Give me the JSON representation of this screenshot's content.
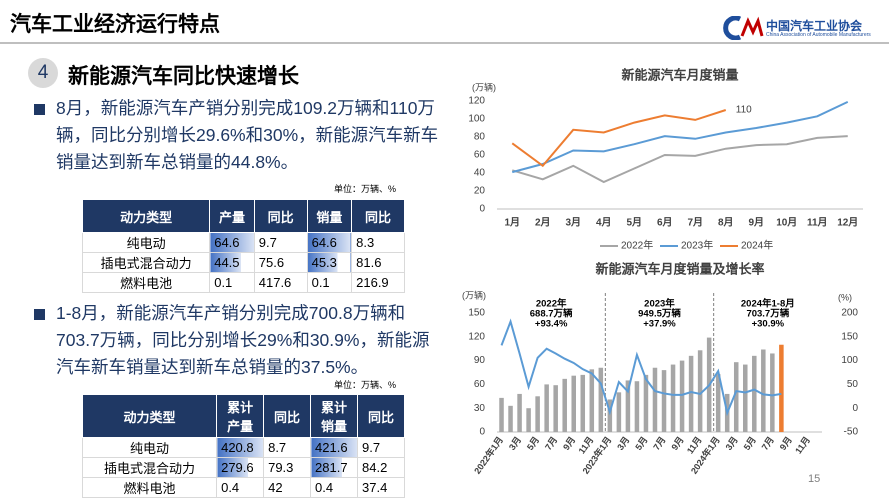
{
  "header": {
    "title": "汽车工业经济运行特点",
    "org_cn": "中国汽车工业协会",
    "org_en": "China Association of Automobile Manufacturers"
  },
  "section": {
    "number": "4",
    "title": "新能源汽车同比快速增长"
  },
  "bullets": [
    "8月，新能源汽车产销分别完成109.2万辆和110万辆，同比分别增长29.6%和30%，新能源汽车新车销量达到新车总销量的44.8%。",
    "1-8月，新能源汽车产销分别完成700.8万辆和703.7万辆，同比分别增长29%和30.9%，新能源汽车新车销量达到新车总销量的37.5%。"
  ],
  "tables": [
    {
      "unit": "单位：万辆、%",
      "headers": [
        "动力类型",
        "产量",
        "同比",
        "销量",
        "同比"
      ],
      "rows": [
        [
          "纯电动",
          "64.6",
          "9.7",
          "64.6",
          "8.3"
        ],
        [
          "插电式混合动力",
          "44.5",
          "75.6",
          "45.3",
          "81.6"
        ],
        [
          "燃料电池",
          "0.1",
          "417.6",
          "0.1",
          "216.9"
        ]
      ]
    },
    {
      "unit": "单位：万辆、%",
      "headers": [
        "动力类型",
        "累计产量",
        "同比",
        "累计销量",
        "同比"
      ],
      "rows": [
        [
          "纯电动",
          "420.8",
          "8.7",
          "421.6",
          "9.7"
        ],
        [
          "插电式混合动力",
          "279.6",
          "79.3",
          "281.7",
          "84.2"
        ],
        [
          "燃料电池",
          "0.4",
          "42",
          "0.4",
          "37.4"
        ]
      ]
    }
  ],
  "page_number": "15",
  "chart_data": [
    {
      "type": "line",
      "title": "新能源汽车月度销量",
      "y_label": "(万辆)",
      "categories": [
        "1月",
        "2月",
        "3月",
        "4月",
        "5月",
        "6月",
        "7月",
        "8月",
        "9月",
        "10月",
        "11月",
        "12月"
      ],
      "series": [
        {
          "name": "2022年",
          "color": "#a6a6a6",
          "values": [
            43,
            33,
            48,
            30,
            45,
            60,
            59,
            67,
            71,
            72,
            79,
            81
          ]
        },
        {
          "name": "2023年",
          "color": "#5b9bd5",
          "values": [
            41,
            50,
            65,
            64,
            72,
            81,
            78,
            85,
            90,
            96,
            103,
            119
          ]
        },
        {
          "name": "2024年",
          "color": "#ed7d31",
          "values": [
            73,
            48,
            88,
            85,
            96,
            104,
            99,
            110,
            null,
            null,
            null,
            null
          ]
        }
      ],
      "ylim": [
        0,
        120
      ],
      "yticks": [
        0,
        20,
        40,
        60,
        80,
        100,
        120
      ],
      "grid": false,
      "legend": "bottom"
    },
    {
      "type": "bar",
      "title": "新能源汽车月度销量及增长率",
      "y_label": "(万辆)",
      "y2_label": "(%)",
      "categories": [
        "2022年1月",
        null,
        "3月",
        null,
        "5月",
        null,
        "7月",
        null,
        "9月",
        null,
        "11月",
        null,
        "2023年1月",
        null,
        "3月",
        null,
        "5月",
        null,
        "7月",
        null,
        "9月",
        null,
        "11月",
        null,
        "2024年1月",
        null,
        "3月",
        null,
        "5月",
        null,
        "7月",
        null,
        "9月",
        null,
        "11月",
        null
      ],
      "series": [
        {
          "color": "#a6a6a6",
          "highlight": {
            "index": 31,
            "color": "#ed7d31"
          },
          "values": [
            43,
            33,
            48,
            30,
            45,
            60,
            59,
            67,
            71,
            72,
            79,
            81,
            41,
            50,
            65,
            64,
            72,
            81,
            78,
            85,
            90,
            96,
            103,
            119,
            73,
            48,
            88,
            85,
            96,
            104,
            99,
            110,
            null,
            null,
            null,
            null
          ]
        },
        {
          "type": "line",
          "axis": "y2",
          "color": "#5b9bd5",
          "values": [
            132,
            182,
            115,
            45,
            106,
            125,
            115,
            104,
            95,
            82,
            73,
            52,
            -8,
            55,
            35,
            112,
            61,
            36,
            31,
            28,
            28,
            34,
            30,
            48,
            78,
            -10,
            36,
            33,
            39,
            29,
            27,
            30,
            null,
            null,
            null,
            null
          ]
        }
      ],
      "annotations": [
        [
          "2022年",
          "688.7万辆",
          "+93.4%"
        ],
        [
          "2023年",
          "949.5万辆",
          "+37.9%"
        ],
        [
          "2024年1-8月",
          "703.7万辆",
          "+30.9%"
        ]
      ],
      "ylim": [
        0,
        150
      ],
      "yticks": [
        0,
        30,
        60,
        90,
        120,
        150
      ],
      "y2lim": [
        -50,
        200
      ],
      "y2ticks": [
        -50,
        0,
        50,
        100,
        150,
        200
      ],
      "grid": false
    }
  ]
}
